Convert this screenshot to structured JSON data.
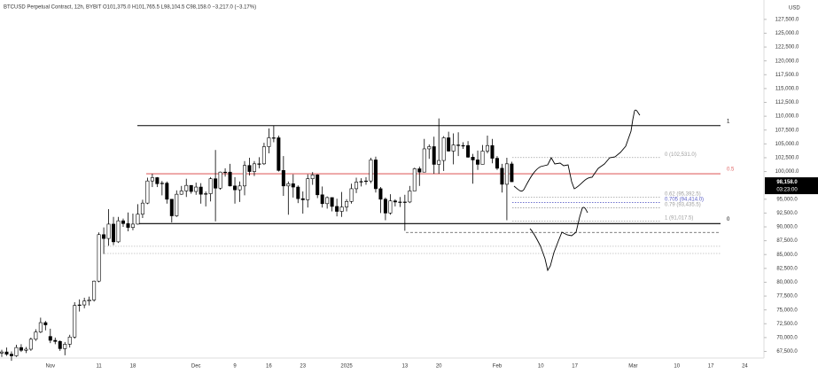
{
  "chart_data": {
    "type": "candlestick",
    "title": "BTCUSD Perpetual Contract, 12h, BYBIT  O101,375.0  H101,765.5  L98,104.5  C98,158.0  −3,217.0 (−3.17%)",
    "currency": "USD",
    "categories": [
      null,
      null,
      null,
      null,
      null,
      null,
      null,
      null,
      null,
      null,
      "Nov",
      null,
      null,
      null,
      null,
      null,
      null,
      null,
      null,
      null,
      "11",
      null,
      null,
      null,
      null,
      null,
      null,
      "18",
      null,
      null,
      null,
      null,
      null,
      null,
      null,
      null,
      null,
      null,
      null,
      null,
      "Dec",
      null,
      null,
      null,
      null,
      null,
      null,
      null,
      "9",
      null,
      null,
      null,
      null,
      null,
      null,
      "16",
      null,
      null,
      null,
      null,
      null,
      null,
      "23",
      null,
      null,
      null,
      null,
      null,
      null,
      null,
      null,
      "2025",
      null,
      null,
      null,
      null,
      null,
      null,
      null,
      null,
      null,
      null,
      null,
      "13",
      null,
      null,
      null,
      null,
      null,
      null,
      "20",
      null,
      null,
      null,
      null,
      null,
      null,
      null,
      null,
      null,
      null,
      null,
      "Feb",
      null,
      null,
      null,
      null,
      null,
      null,
      null,
      null,
      "10",
      null,
      null,
      null,
      null,
      null,
      null,
      "17",
      null,
      null,
      null,
      null,
      null,
      null,
      null,
      null,
      null,
      null,
      null,
      "Mar",
      null,
      null,
      null,
      null,
      null,
      null,
      null,
      null,
      "10",
      null,
      null,
      null,
      null,
      null,
      null,
      "17",
      null,
      null,
      null,
      null,
      null,
      null,
      "24",
      null,
      null
    ],
    "candles": [
      [
        67200,
        67800,
        66500,
        67400
      ],
      [
        67400,
        68200,
        66700,
        67000
      ],
      [
        67000,
        67500,
        65800,
        66700
      ],
      [
        66700,
        68700,
        66500,
        68200
      ],
      [
        68200,
        68800,
        67400,
        67700
      ],
      [
        67700,
        68300,
        67200,
        67900
      ],
      [
        67900,
        70000,
        67600,
        69700
      ],
      [
        69700,
        71500,
        69400,
        71000
      ],
      [
        71000,
        73600,
        70800,
        72700
      ],
      [
        72700,
        73000,
        71300,
        72300
      ],
      [
        70200,
        71600,
        69000,
        69500
      ],
      [
        69500,
        70000,
        68800,
        69300
      ],
      [
        69300,
        69500,
        67600,
        68000
      ],
      [
        68000,
        69200,
        66800,
        68800
      ],
      [
        68800,
        70500,
        68200,
        70100
      ],
      [
        70100,
        76400,
        69800,
        75800
      ],
      [
        75800,
        76900,
        74700,
        75900
      ],
      [
        75900,
        77200,
        75300,
        76600
      ],
      [
        76600,
        77400,
        75800,
        76800
      ],
      [
        76800,
        80300,
        76500,
        80200
      ],
      [
        80200,
        89000,
        80000,
        88600
      ],
      [
        88600,
        89900,
        85100,
        87900
      ],
      [
        87900,
        93200,
        86600,
        90500
      ],
      [
        90500,
        91800,
        86700,
        87300
      ],
      [
        87300,
        91800,
        87100,
        91100
      ],
      [
        91100,
        91500,
        90000,
        90600
      ],
      [
        90600,
        92600,
        89200,
        89900
      ],
      [
        89900,
        92400,
        89400,
        90500
      ],
      [
        90500,
        94100,
        90400,
        92300
      ],
      [
        92300,
        94900,
        91600,
        94300
      ],
      [
        94300,
        98900,
        94100,
        98300
      ],
      [
        98300,
        99600,
        97200,
        98900
      ],
      [
        98900,
        99000,
        97200,
        97800
      ],
      [
        97800,
        98300,
        95700,
        97900
      ],
      [
        97900,
        98200,
        94200,
        95000
      ],
      [
        95000,
        95000,
        90800,
        92000
      ],
      [
        92000,
        96600,
        91800,
        95900
      ],
      [
        95900,
        97400,
        95800,
        96500
      ],
      [
        96500,
        98700,
        95400,
        97500
      ],
      [
        97500,
        97500,
        96000,
        96400
      ],
      [
        96400,
        98000,
        95800,
        97200
      ],
      [
        97200,
        97900,
        94200,
        95900
      ],
      [
        95900,
        96400,
        93700,
        96000
      ],
      [
        96000,
        99000,
        94600,
        98700
      ],
      [
        98700,
        103900,
        91000,
        97000
      ],
      [
        97000,
        100000,
        96700,
        99900
      ],
      [
        99900,
        100600,
        99100,
        99900
      ],
      [
        99900,
        101400,
        97300,
        97400
      ],
      [
        97400,
        99000,
        94200,
        96700
      ],
      [
        96700,
        98200,
        94500,
        97400
      ],
      [
        97400,
        101900,
        95700,
        101100
      ],
      [
        101100,
        102500,
        99300,
        100000
      ],
      [
        100000,
        101900,
        99200,
        101400
      ],
      [
        101400,
        102600,
        100600,
        101400
      ],
      [
        101400,
        105200,
        101200,
        104500
      ],
      [
        104500,
        107800,
        103300,
        106100
      ],
      [
        106100,
        108300,
        105300,
        106100
      ],
      [
        106100,
        106500,
        100000,
        100200
      ],
      [
        100200,
        102800,
        95600,
        97400
      ],
      [
        97400,
        98200,
        92200,
        97800
      ],
      [
        97800,
        99500,
        95300,
        97200
      ],
      [
        97200,
        97500,
        94300,
        95100
      ],
      [
        95100,
        96400,
        92400,
        94900
      ],
      [
        94900,
        99500,
        93500,
        98700
      ],
      [
        98700,
        99900,
        97600,
        99400
      ],
      [
        99400,
        99500,
        95200,
        95800
      ],
      [
        95800,
        97300,
        93500,
        94200
      ],
      [
        94200,
        95500,
        93300,
        95300
      ],
      [
        95300,
        95300,
        92800,
        93700
      ],
      [
        93700,
        95100,
        91900,
        92800
      ],
      [
        92800,
        96300,
        91800,
        93600
      ],
      [
        93600,
        95000,
        92800,
        94600
      ],
      [
        94600,
        97800,
        94200,
        96900
      ],
      [
        96900,
        98900,
        96100,
        98100
      ],
      [
        98100,
        98800,
        97300,
        98200
      ],
      [
        98200,
        99000,
        97600,
        98300
      ],
      [
        98300,
        102500,
        97900,
        102100
      ],
      [
        102100,
        102700,
        96200,
        96900
      ],
      [
        96900,
        97200,
        92500,
        95000
      ],
      [
        95000,
        95300,
        91200,
        92500
      ],
      [
        92500,
        95900,
        92200,
        94700
      ],
      [
        94700,
        95000,
        93700,
        94500
      ],
      [
        94500,
        95400,
        93600,
        94500
      ],
      [
        94500,
        95800,
        89300,
        94500
      ],
      [
        94500,
        97400,
        94300,
        96500
      ],
      [
        96500,
        100700,
        96500,
        100500
      ],
      [
        100500,
        100900,
        97400,
        99900
      ],
      [
        99900,
        105900,
        99900,
        104100
      ],
      [
        104100,
        104900,
        102300,
        104500
      ],
      [
        104500,
        106300,
        99600,
        101300
      ],
      [
        101300,
        109600,
        99600,
        102000
      ],
      [
        102000,
        106400,
        100100,
        106100
      ],
      [
        106100,
        107200,
        103600,
        103700
      ],
      [
        103700,
        106900,
        101300,
        104800
      ],
      [
        104800,
        107100,
        102800,
        104700
      ],
      [
        104700,
        105300,
        104100,
        104700
      ],
      [
        104700,
        105500,
        102500,
        102600
      ],
      [
        102600,
        103200,
        97800,
        102100
      ],
      [
        102100,
        103800,
        100300,
        101300
      ],
      [
        101300,
        104800,
        101300,
        103700
      ],
      [
        103700,
        106500,
        103300,
        104700
      ],
      [
        104700,
        105900,
        101500,
        102400
      ],
      [
        102400,
        102800,
        100300,
        100600
      ],
      [
        100600,
        101400,
        96200,
        97700
      ],
      [
        97700,
        102500,
        91200,
        101400
      ],
      [
        101375,
        101765.5,
        98104.5,
        98158
      ],
      null,
      null,
      null,
      null,
      null,
      null,
      null,
      null,
      null,
      null,
      null,
      null,
      null,
      null,
      null,
      null,
      null,
      null,
      null,
      null,
      null,
      null,
      null,
      null,
      null,
      null,
      null,
      null,
      null,
      null,
      null,
      null,
      null,
      null,
      null,
      null,
      null,
      null,
      null,
      null,
      null,
      null,
      null,
      null,
      null,
      null,
      null,
      null,
      null,
      null
    ],
    "up_color": "#ffffff",
    "down_color": "#000000",
    "wick_color": "#000000",
    "ylim": [
      66300,
      131000
    ],
    "yticks": [
      {
        "value": 67500,
        "label": "67,500.0"
      },
      {
        "value": 70000,
        "label": "70,000.0"
      },
      {
        "value": 72500,
        "label": "72,500.0"
      },
      {
        "value": 75000,
        "label": "75,000.0"
      },
      {
        "value": 77500,
        "label": "77,500.0"
      },
      {
        "value": 80000,
        "label": "80,000.0"
      },
      {
        "value": 82500,
        "label": "82,500.0"
      },
      {
        "value": 85000,
        "label": "85,000.0"
      },
      {
        "value": 87500,
        "label": "87,500.0"
      },
      {
        "value": 90000,
        "label": "90,000.0"
      },
      {
        "value": 92500,
        "label": "92,500.0"
      },
      {
        "value": 95000,
        "label": "95,000.0"
      },
      {
        "value": 100000,
        "label": "100,000.0"
      },
      {
        "value": 102500,
        "label": "102,500.0"
      },
      {
        "value": 105000,
        "label": "105,000.0"
      },
      {
        "value": 107500,
        "label": "107,500.0"
      },
      {
        "value": 110000,
        "label": "110,000.0"
      },
      {
        "value": 112500,
        "label": "112,500.0"
      },
      {
        "value": 115000,
        "label": "115,000.0"
      },
      {
        "value": 117500,
        "label": "117,500.0"
      },
      {
        "value": 120000,
        "label": "120,000.0"
      },
      {
        "value": 122500,
        "label": "122,500.0"
      },
      {
        "value": 125000,
        "label": "125,000.0"
      },
      {
        "value": 127500,
        "label": "127,500.0"
      }
    ],
    "last_price": {
      "value": 98158,
      "label": "98,158.0"
    },
    "countdown": "03:23:00",
    "levels": [
      {
        "value": 108300,
        "label": "1",
        "color": "#000000",
        "style": "solid"
      },
      {
        "value": 90600,
        "label": "0",
        "color": "#000000",
        "style": "solid"
      },
      {
        "value": 99600,
        "label": "0.5",
        "color": "#e06666",
        "style": "solid"
      },
      {
        "value": 102531,
        "label": "0 (102,531.0)",
        "color": "#9e9e9e",
        "style": "dotted"
      },
      {
        "value": 95392.5,
        "label": "0.62 (95,392.5)",
        "color": "#9e9e9e",
        "style": "dotted"
      },
      {
        "value": 94414,
        "label": "0.705 (94,414.0)",
        "color": "#5b5fc7",
        "style": "dotted"
      },
      {
        "value": 93435.5,
        "label": "0.79 (93,435.5)",
        "color": "#9e9e9e",
        "style": "dotted"
      },
      {
        "value": 91017.5,
        "label": "1 (91,017.5)",
        "color": "#9e9e9e",
        "style": "dotted"
      },
      {
        "value": 89000,
        "color": "#555555",
        "style": "dashed"
      },
      {
        "value": 86500,
        "color": "#bbbbbb",
        "style": "dotted"
      },
      {
        "value": 85200,
        "color": "#bbbbbb",
        "style": "dotted"
      }
    ]
  }
}
